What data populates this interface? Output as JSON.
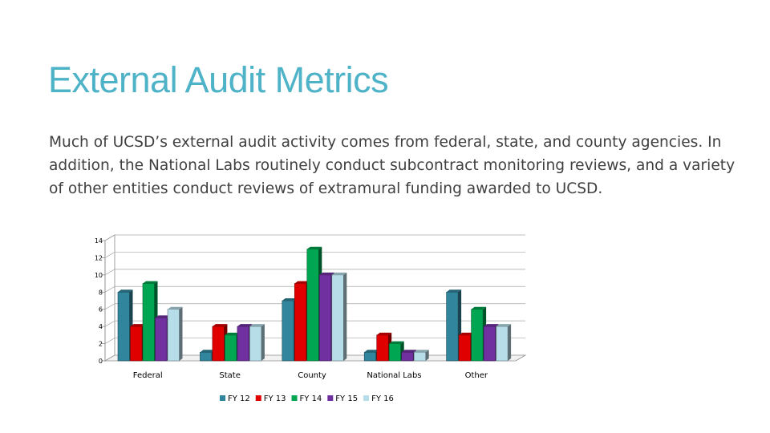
{
  "slide": {
    "title": "External Audit Metrics",
    "body": "Much of UCSD’s external audit activity comes from federal, state, and county agencies. In addition, the National Labs routinely conduct subcontract monitoring reviews, and a variety of other entities conduct reviews of extramural funding awarded to UCSD."
  },
  "chart_data": {
    "type": "bar",
    "title": "",
    "xlabel": "",
    "ylabel": "",
    "ylim": [
      0,
      14
    ],
    "yticks": [
      0,
      2,
      4,
      6,
      8,
      10,
      12,
      14
    ],
    "grid": true,
    "legend_position": "bottom",
    "categories": [
      "Federal",
      "State",
      "County",
      "National Labs",
      "Other"
    ],
    "series": [
      {
        "name": "FY 12",
        "color": "#31859c",
        "values": [
          8,
          1,
          7,
          1,
          8
        ]
      },
      {
        "name": "FY 13",
        "color": "#e00000",
        "values": [
          4,
          4,
          9,
          3,
          3
        ]
      },
      {
        "name": "FY 14",
        "color": "#00a651",
        "values": [
          9,
          3,
          13,
          2,
          6
        ]
      },
      {
        "name": "FY 15",
        "color": "#7030a0",
        "values": [
          5,
          4,
          10,
          1,
          4
        ]
      },
      {
        "name": "FY 16",
        "color": "#b7dde8",
        "values": [
          6,
          4,
          10,
          1,
          4
        ]
      }
    ]
  }
}
